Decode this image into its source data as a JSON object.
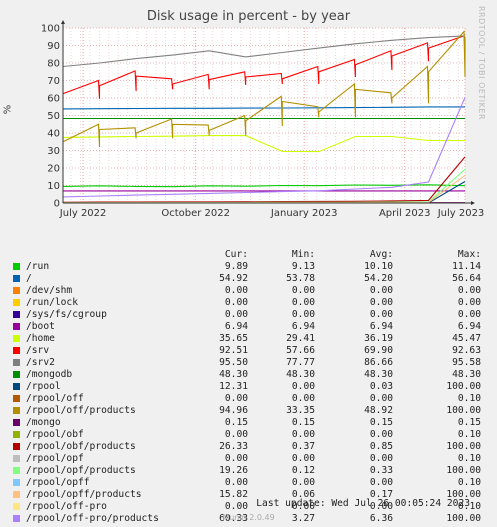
{
  "chart_data": {
    "type": "line",
    "title": "Disk usage in percent - by year",
    "ylabel": "%",
    "ylim": [
      0,
      100
    ],
    "y_ticks": [
      "0",
      "10",
      "20",
      "30",
      "40",
      "50",
      "60",
      "70",
      "80",
      "90",
      "100"
    ],
    "x_ticks": [
      "July 2022",
      "October 2022",
      "January 2023",
      "April 2023",
      "July 2023"
    ],
    "x_tick_positions": [
      0.05,
      0.33,
      0.6,
      0.85,
      1.0
    ],
    "grid": true,
    "series": [
      {
        "name": "/run",
        "color": "#00cc00",
        "shape": "flat",
        "values": [
          9.5,
          9.8,
          9.5,
          9.3,
          9.8,
          9.6,
          10.0,
          9.9,
          10.3,
          10.1,
          10.4,
          9.89
        ]
      },
      {
        "name": "/",
        "color": "#0066b3",
        "shape": "flat",
        "values": [
          53.8,
          53.9,
          54.0,
          54.1,
          54.1,
          54.2,
          54.3,
          54.4,
          54.5,
          54.7,
          54.9,
          54.92
        ]
      },
      {
        "name": "/dev/shm",
        "color": "#ff8000",
        "shape": "flat",
        "values": [
          0,
          0,
          0,
          0,
          0,
          0,
          0,
          0,
          0,
          0,
          0,
          0
        ]
      },
      {
        "name": "/run/lock",
        "color": "#ffcc00",
        "shape": "flat",
        "values": [
          0,
          0,
          0,
          0,
          0,
          0,
          0,
          0,
          0,
          0,
          0,
          0
        ]
      },
      {
        "name": "/sys/fs/cgroup",
        "color": "#330099",
        "shape": "flat",
        "values": [
          0,
          0,
          0,
          0,
          0,
          0,
          0,
          0,
          0,
          0,
          0,
          0
        ]
      },
      {
        "name": "/boot",
        "color": "#990099",
        "shape": "flat",
        "values": [
          6.94,
          6.94,
          6.94,
          6.94,
          6.94,
          6.94,
          6.94,
          6.94,
          6.94,
          6.94,
          6.94,
          6.94
        ]
      },
      {
        "name": "/home",
        "color": "#ccff00",
        "shape": "flat",
        "values": [
          37.5,
          37.8,
          38.0,
          38.2,
          38.5,
          38.5,
          29.5,
          29.4,
          38.0,
          38.0,
          35.7,
          35.65
        ]
      },
      {
        "name": "/srv",
        "color": "#ff0000",
        "shape": "saw",
        "values": [
          62.5,
          67.0,
          72.5,
          68.0,
          70.5,
          72.0,
          71.0,
          75.0,
          79.0,
          84.0,
          88.5,
          92.51
        ]
      },
      {
        "name": "/srv2",
        "color": "#808080",
        "shape": "flat",
        "values": [
          78.0,
          80.0,
          82.5,
          84.5,
          87.0,
          83.5,
          86.0,
          88.5,
          91.0,
          93.0,
          94.5,
          95.5
        ]
      },
      {
        "name": "/mongodb",
        "color": "#008f00",
        "shape": "flat",
        "values": [
          48.3,
          48.3,
          48.3,
          48.3,
          48.3,
          48.3,
          48.3,
          48.3,
          48.3,
          48.3,
          48.3,
          48.3
        ]
      },
      {
        "name": "/rpool",
        "color": "#00487d",
        "shape": "flat",
        "values": [
          0,
          0,
          0,
          0,
          0,
          0,
          0,
          0,
          0,
          0,
          0,
          12.31
        ]
      },
      {
        "name": "/rpool/off",
        "color": "#b35a00",
        "shape": "flat",
        "values": [
          0,
          0,
          0,
          0,
          0,
          0,
          0,
          0,
          0,
          0,
          0,
          0
        ]
      },
      {
        "name": "/rpool/off/products",
        "color": "#b38f00",
        "shape": "saw",
        "values": [
          35.0,
          42.0,
          40.0,
          45.0,
          41.5,
          47.0,
          58.0,
          52.0,
          65.0,
          60.0,
          75.0,
          94.96
        ]
      },
      {
        "name": "/mongo",
        "color": "#6b006b",
        "shape": "flat",
        "values": [
          0.15,
          0.15,
          0.15,
          0.15,
          0.15,
          0.15,
          0.15,
          0.15,
          0.15,
          0.15,
          0.15,
          0.15
        ]
      },
      {
        "name": "/rpool/obf",
        "color": "#8fb300",
        "shape": "flat",
        "values": [
          0,
          0,
          0,
          0,
          0,
          0,
          0,
          0,
          0,
          0,
          0,
          0
        ]
      },
      {
        "name": "/rpool/obf/products",
        "color": "#b30000",
        "shape": "flat",
        "values": [
          0.4,
          0.5,
          0.5,
          0.6,
          0.6,
          0.7,
          0.8,
          0.9,
          1.0,
          1.2,
          1.5,
          26.33
        ]
      },
      {
        "name": "/rpool/opf",
        "color": "#bebebe",
        "shape": "flat",
        "values": [
          0,
          0,
          0,
          0,
          0,
          0,
          0,
          0,
          0,
          0,
          0,
          0
        ]
      },
      {
        "name": "/rpool/opf/products",
        "color": "#80ff80",
        "shape": "flat",
        "values": [
          0.1,
          0.2,
          0.2,
          0.3,
          0.3,
          0.3,
          0.4,
          0.4,
          0.4,
          0.5,
          0.6,
          19.26
        ]
      },
      {
        "name": "/rpool/opff",
        "color": "#80c9ff",
        "shape": "flat",
        "values": [
          0,
          0,
          0,
          0,
          0,
          0,
          0,
          0,
          0,
          0,
          0,
          0
        ]
      },
      {
        "name": "/rpool/opff/products",
        "color": "#ffc080",
        "shape": "flat",
        "values": [
          0.06,
          0.1,
          0.1,
          0.1,
          0.1,
          0.1,
          0.2,
          0.2,
          0.2,
          0.2,
          0.3,
          15.82
        ]
      },
      {
        "name": "/rpool/off-pro",
        "color": "#ffe680",
        "shape": "flat",
        "values": [
          0,
          0,
          0,
          0,
          0,
          0,
          0,
          0,
          0,
          0,
          0,
          0
        ]
      },
      {
        "name": "/rpool/off-pro/products",
        "color": "#aa80ff",
        "shape": "flat",
        "values": [
          3.5,
          4.0,
          4.5,
          5.0,
          5.5,
          6.0,
          6.5,
          7.0,
          8.0,
          9.0,
          12.0,
          60.33
        ]
      }
    ]
  },
  "legend": {
    "headers": {
      "cur": "Cur:",
      "min": "Min:",
      "avg": "Avg:",
      "max": "Max:"
    },
    "rows": [
      {
        "label": "/run",
        "color": "#00cc00",
        "cur": "9.89",
        "min": "9.13",
        "avg": "10.10",
        "max": "11.14"
      },
      {
        "label": "/",
        "color": "#0066b3",
        "cur": "54.92",
        "min": "53.78",
        "avg": "54.20",
        "max": "56.64"
      },
      {
        "label": "/dev/shm",
        "color": "#ff8000",
        "cur": "0.00",
        "min": "0.00",
        "avg": "0.00",
        "max": "0.00"
      },
      {
        "label": "/run/lock",
        "color": "#ffcc00",
        "cur": "0.00",
        "min": "0.00",
        "avg": "0.00",
        "max": "0.00"
      },
      {
        "label": "/sys/fs/cgroup",
        "color": "#330099",
        "cur": "0.00",
        "min": "0.00",
        "avg": "0.00",
        "max": "0.00"
      },
      {
        "label": "/boot",
        "color": "#990099",
        "cur": "6.94",
        "min": "6.94",
        "avg": "6.94",
        "max": "6.94"
      },
      {
        "label": "/home",
        "color": "#ccff00",
        "cur": "35.65",
        "min": "29.41",
        "avg": "36.19",
        "max": "45.47"
      },
      {
        "label": "/srv",
        "color": "#ff0000",
        "cur": "92.51",
        "min": "57.66",
        "avg": "69.90",
        "max": "92.63"
      },
      {
        "label": "/srv2",
        "color": "#808080",
        "cur": "95.50",
        "min": "77.77",
        "avg": "86.66",
        "max": "95.58"
      },
      {
        "label": "/mongodb",
        "color": "#008f00",
        "cur": "48.30",
        "min": "48.30",
        "avg": "48.30",
        "max": "48.30"
      },
      {
        "label": "/rpool",
        "color": "#00487d",
        "cur": "12.31",
        "min": "0.00",
        "avg": "0.03",
        "max": "100.00"
      },
      {
        "label": "/rpool/off",
        "color": "#b35a00",
        "cur": "0.00",
        "min": "0.00",
        "avg": "0.00",
        "max": "0.10"
      },
      {
        "label": "/rpool/off/products",
        "color": "#b38f00",
        "cur": "94.96",
        "min": "33.35",
        "avg": "48.92",
        "max": "100.00"
      },
      {
        "label": "/mongo",
        "color": "#6b006b",
        "cur": "0.15",
        "min": "0.15",
        "avg": "0.15",
        "max": "0.15"
      },
      {
        "label": "/rpool/obf",
        "color": "#8fb300",
        "cur": "0.00",
        "min": "0.00",
        "avg": "0.00",
        "max": "0.10"
      },
      {
        "label": "/rpool/obf/products",
        "color": "#b30000",
        "cur": "26.33",
        "min": "0.37",
        "avg": "0.85",
        "max": "100.00"
      },
      {
        "label": "/rpool/opf",
        "color": "#bebebe",
        "cur": "0.00",
        "min": "0.00",
        "avg": "0.00",
        "max": "0.10"
      },
      {
        "label": "/rpool/opf/products",
        "color": "#80ff80",
        "cur": "19.26",
        "min": "0.12",
        "avg": "0.33",
        "max": "100.00"
      },
      {
        "label": "/rpool/opff",
        "color": "#80c9ff",
        "cur": "0.00",
        "min": "0.00",
        "avg": "0.00",
        "max": "0.10"
      },
      {
        "label": "/rpool/opff/products",
        "color": "#ffc080",
        "cur": "15.82",
        "min": "0.06",
        "avg": "0.17",
        "max": "100.00"
      },
      {
        "label": "/rpool/off-pro",
        "color": "#ffe680",
        "cur": "0.00",
        "min": "0.00",
        "avg": "0.00",
        "max": "0.10"
      },
      {
        "label": "/rpool/off-pro/products",
        "color": "#aa80ff",
        "cur": "60.33",
        "min": "3.27",
        "avg": "6.36",
        "max": "100.00"
      }
    ]
  },
  "last_update": "Last update: Wed Jul 26 00:05:24 2023",
  "footer": "Munin 2.0.49",
  "watermark": "RRDTOOL / TOBI OETIKER"
}
